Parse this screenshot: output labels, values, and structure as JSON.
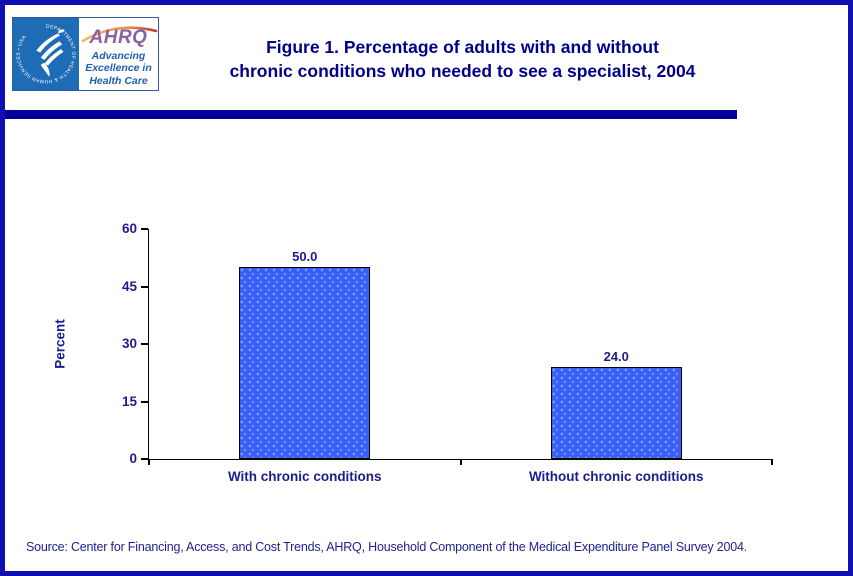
{
  "page": {
    "border_color": "#0f0fb4",
    "background": "#ffffff"
  },
  "logo": {
    "seal_text": "DEPARTMENT OF HEALTH & HUMAN SERVICES • USA",
    "brand": "AHRQ",
    "tagline_lines": [
      "Advancing",
      "Excellence in",
      "Health Care"
    ],
    "colors": {
      "seal_bg": "#1e6cb5",
      "brand_purple": "#8b5fa5",
      "tagline_blue": "#1f5fb0",
      "swoosh_orange": "#e8904a",
      "swoosh_red": "#c0392b"
    }
  },
  "header": {
    "title_line1": "Figure 1. Percentage of adults with and without",
    "title_line2": "chronic conditions who needed to see a specialist, 2004",
    "title_color": "#00008b",
    "underline_bar_color": "#000099"
  },
  "chart_data": {
    "type": "bar",
    "title": "Figure 1. Percentage of adults with and without chronic conditions who needed to see a specialist, 2004",
    "categories": [
      "With chronic conditions",
      "Without chronic conditions"
    ],
    "values": [
      50.0,
      24.0
    ],
    "value_labels": [
      "50.0",
      "24.0"
    ],
    "xlabel": "",
    "ylabel": "Percent",
    "ylim": [
      0,
      60
    ],
    "yticks": [
      0,
      15,
      30,
      45,
      60
    ],
    "grid": false,
    "legend": false,
    "bar_color": "#3a5ef7",
    "bar_border_color": "#000000",
    "axis_text_color": "#1c1c8f"
  },
  "footer": {
    "source": "Source: Center for Financing, Access, and Cost Trends, AHRQ, Household Component of the Medical Expenditure Panel Survey 2004."
  }
}
